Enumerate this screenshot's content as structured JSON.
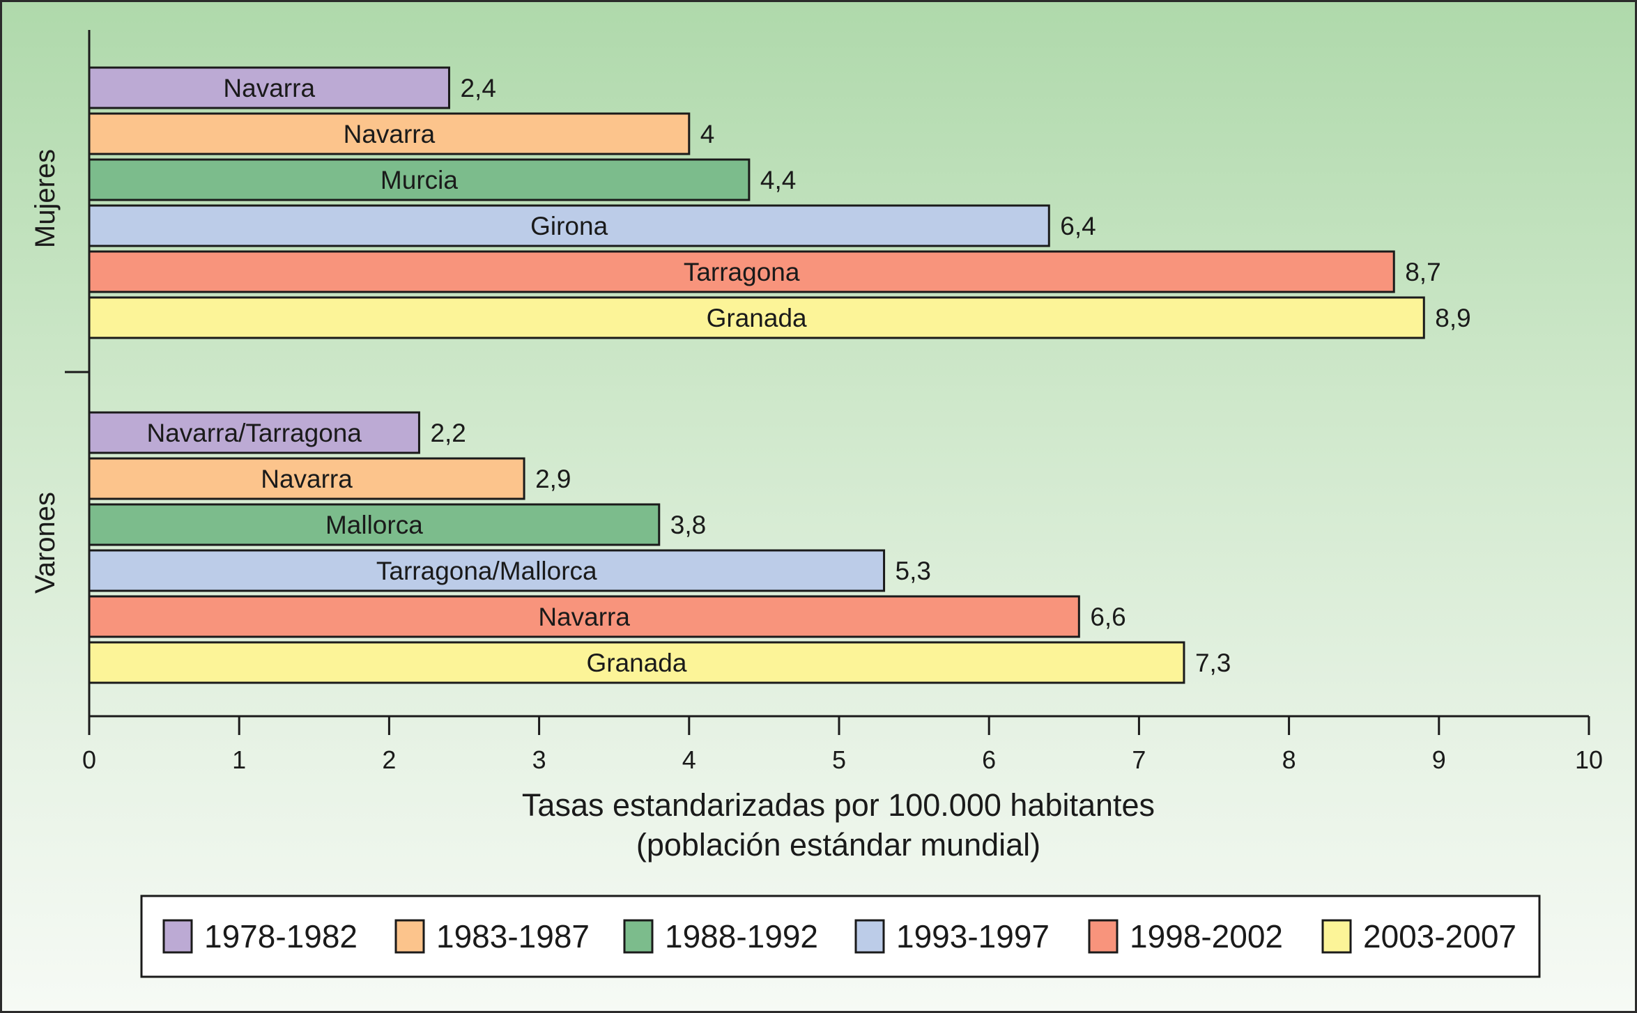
{
  "chart_data": {
    "type": "bar",
    "orientation": "horizontal",
    "xlabel_line1": "Tasas estandarizadas por 100.000 habitantes",
    "xlabel_line2": "(población estándar mundial)",
    "xlim": [
      0,
      10
    ],
    "xticks": [
      "0",
      "1",
      "2",
      "3",
      "4",
      "5",
      "6",
      "7",
      "8",
      "9",
      "10"
    ],
    "grid": false,
    "legend_position": "bottom",
    "series": [
      {
        "name": "1978-1982",
        "color": "#bcaad4"
      },
      {
        "name": "1983-1987",
        "color": "#fcc48c"
      },
      {
        "name": "1988-1992",
        "color": "#7cbc8c"
      },
      {
        "name": "1993-1997",
        "color": "#bccce8"
      },
      {
        "name": "1998-2002",
        "color": "#f8947c"
      },
      {
        "name": "2003-2007",
        "color": "#fcf498"
      }
    ],
    "groups": [
      {
        "name": "Mujeres",
        "bars": [
          {
            "series": "1978-1982",
            "region": "Navarra",
            "value": 2.4,
            "value_label": "2,4"
          },
          {
            "series": "1983-1987",
            "region": "Navarra",
            "value": 4,
            "value_label": "4"
          },
          {
            "series": "1988-1992",
            "region": "Murcia",
            "value": 4.4,
            "value_label": "4,4"
          },
          {
            "series": "1993-1997",
            "region": "Girona",
            "value": 6.4,
            "value_label": "6,4"
          },
          {
            "series": "1998-2002",
            "region": "Tarragona",
            "value": 8.7,
            "value_label": "8,7"
          },
          {
            "series": "2003-2007",
            "region": "Granada",
            "value": 8.9,
            "value_label": "8,9"
          }
        ]
      },
      {
        "name": "Varones",
        "bars": [
          {
            "series": "1978-1982",
            "region": "Navarra/Tarragona",
            "value": 2.2,
            "value_label": "2,2"
          },
          {
            "series": "1983-1987",
            "region": "Navarra",
            "value": 2.9,
            "value_label": "2,9"
          },
          {
            "series": "1988-1992",
            "region": "Mallorca",
            "value": 3.8,
            "value_label": "3,8"
          },
          {
            "series": "1993-1997",
            "region": "Tarragona/Mallorca",
            "value": 5.3,
            "value_label": "5,3"
          },
          {
            "series": "1998-2002",
            "region": "Navarra",
            "value": 6.6,
            "value_label": "6,6"
          },
          {
            "series": "2003-2007",
            "region": "Granada",
            "value": 7.3,
            "value_label": "7,3"
          }
        ]
      }
    ]
  }
}
